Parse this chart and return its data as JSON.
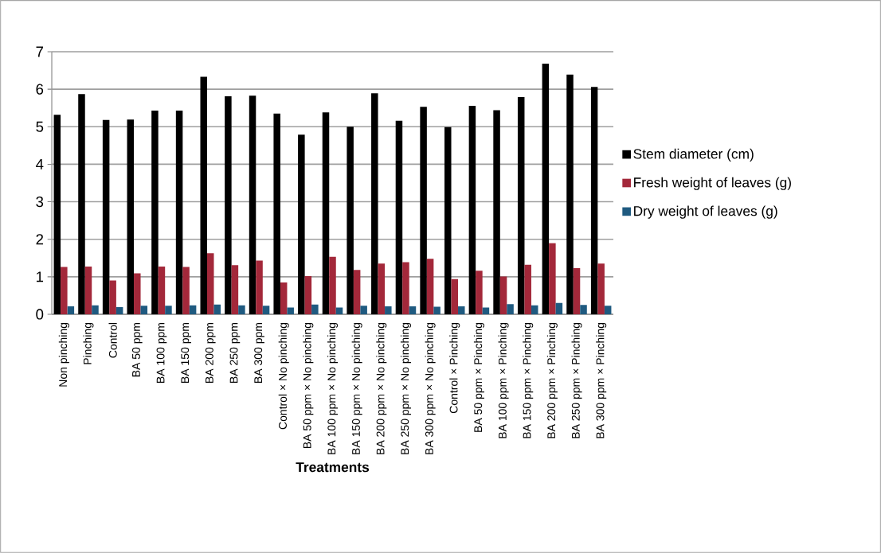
{
  "chart_data": {
    "type": "bar",
    "xlabel": "Treatments",
    "categories": [
      "Non pinching",
      "Pinching",
      "Control",
      "BA 50 ppm",
      "BA 100 ppm",
      "BA 150 ppm",
      "BA 200 ppm",
      "BA 250 ppm",
      "BA 300 ppm",
      "Control × No pinching",
      "BA 50 ppm × No pinching",
      "BA 100 ppm × No pinching",
      "BA 150 ppm × No pinching",
      "BA 200 ppm × No pinching",
      "BA 250 ppm × No pinching",
      "BA 300 ppm × No pinching",
      "Control × Pinching",
      "BA 50 ppm × Pinching",
      "BA 100 ppm × Pinching",
      "BA 150 ppm × Pinching",
      "BA 200 ppm × Pinching",
      "BA 250 ppm × Pinching",
      "BA 300 ppm × Pinching"
    ],
    "series": [
      {
        "name": "Stem diameter (cm)",
        "color": "#000000",
        "values": [
          5.32,
          5.87,
          5.18,
          5.19,
          5.43,
          5.43,
          6.33,
          5.81,
          5.83,
          5.35,
          4.79,
          5.38,
          5.0,
          5.89,
          5.16,
          5.53,
          4.99,
          5.56,
          5.44,
          5.79,
          6.68,
          6.39,
          6.06
        ]
      },
      {
        "name": "Fresh weight of leaves (g)",
        "color": "#a3283a",
        "values": [
          1.26,
          1.27,
          0.9,
          1.09,
          1.27,
          1.26,
          1.63,
          1.31,
          1.43,
          0.85,
          1.02,
          1.53,
          1.18,
          1.35,
          1.39,
          1.48,
          0.94,
          1.16,
          1.01,
          1.32,
          1.9,
          1.23,
          1.35
        ]
      },
      {
        "name": "Dry weight of leaves (g)",
        "color": "#1f5a80",
        "values": [
          0.21,
          0.24,
          0.19,
          0.23,
          0.23,
          0.24,
          0.26,
          0.24,
          0.23,
          0.18,
          0.26,
          0.18,
          0.23,
          0.21,
          0.21,
          0.2,
          0.21,
          0.18,
          0.27,
          0.24,
          0.3,
          0.25,
          0.23
        ]
      }
    ],
    "ylim": [
      0,
      7
    ],
    "yticks": [
      0,
      1,
      2,
      3,
      4,
      5,
      6,
      7
    ],
    "grid": "y",
    "legend": "right"
  }
}
